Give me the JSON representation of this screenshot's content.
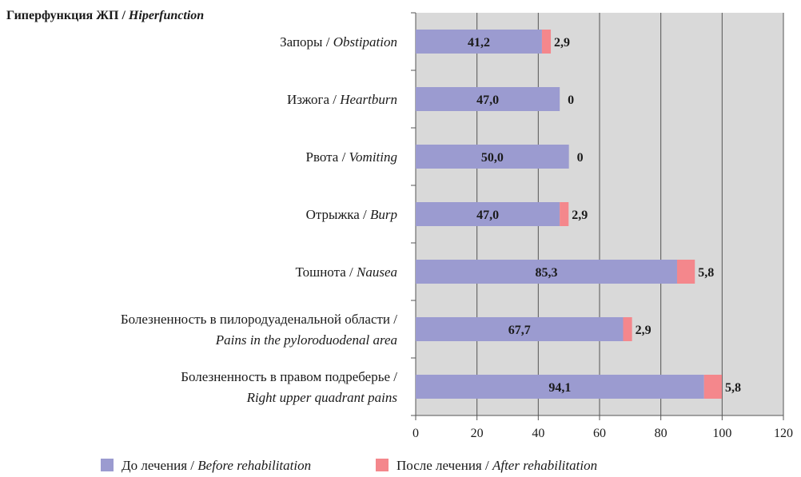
{
  "chart_data": {
    "type": "bar",
    "orientation": "horizontal",
    "stacked": true,
    "title": "Гиперфункция ЖП / Hiperfunction",
    "title_parts": {
      "ru": "Гиперфункция ЖП / ",
      "en": "Hiperfunction"
    },
    "categories": [
      {
        "lines": [
          {
            "ru": "Запоры / ",
            "en": "Obstipation"
          }
        ]
      },
      {
        "lines": [
          {
            "ru": "Изжога / ",
            "en": "Heartburn"
          }
        ]
      },
      {
        "lines": [
          {
            "ru": "Рвота / ",
            "en": "Vomiting"
          }
        ]
      },
      {
        "lines": [
          {
            "ru": "Отрыжка / ",
            "en": "Burp"
          }
        ]
      },
      {
        "lines": [
          {
            "ru": "Тошнота / ",
            "en": "Nausea"
          }
        ]
      },
      {
        "lines": [
          {
            "ru": "Болезненность в пилородуаденальной области /",
            "en": ""
          },
          {
            "ru": "",
            "en": "Pains in the pyloroduodenal area"
          }
        ]
      },
      {
        "lines": [
          {
            "ru": "Болезненность в правом подреберье /",
            "en": ""
          },
          {
            "ru": "",
            "en": "Right upper quadrant pains"
          }
        ]
      }
    ],
    "series": [
      {
        "name": "До лечения / Before rehabilitation",
        "name_parts": {
          "ru": "До лечения / ",
          "en": "Before rehabilitation"
        },
        "color": "#9b9bd0",
        "values": [
          41.2,
          47.0,
          50.0,
          47.0,
          85.3,
          67.7,
          94.1
        ],
        "labels": [
          "41,2",
          "47,0",
          "50,0",
          "47,0",
          "85,3",
          "67,7",
          "94,1"
        ]
      },
      {
        "name": "После лечения / After rehabilitation",
        "name_parts": {
          "ru": "После лечения / ",
          "en": "After rehabilitation"
        },
        "color": "#f4878c",
        "values": [
          2.9,
          0,
          0,
          2.9,
          5.8,
          2.9,
          5.8
        ],
        "labels": [
          "2,9",
          "0",
          "0",
          "2,9",
          "5,8",
          "2,9",
          "5,8"
        ]
      }
    ],
    "x_ticks": [
      0,
      20,
      40,
      60,
      80,
      100,
      120
    ],
    "xlim": [
      0,
      120
    ],
    "grid": true,
    "plot_background": "#d9d9d9",
    "legend_position": "bottom"
  }
}
